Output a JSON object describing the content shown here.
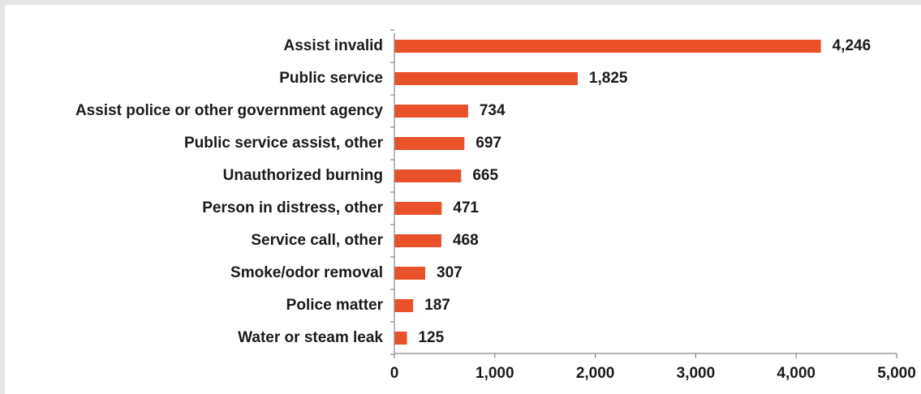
{
  "chart_data": {
    "type": "bar",
    "orientation": "horizontal",
    "title": "",
    "xlabel": "",
    "ylabel": "",
    "categories": [
      "Assist invalid",
      "Public service",
      "Assist police or other government agency",
      "Public service assist, other",
      "Unauthorized burning",
      "Person in distress, other",
      "Service call, other",
      "Smoke/odor removal",
      "Police matter",
      "Water or steam leak"
    ],
    "values": [
      4246,
      1825,
      734,
      697,
      665,
      471,
      468,
      307,
      187,
      125
    ],
    "value_labels": [
      "4,246",
      "1,825",
      "734",
      "697",
      "665",
      "471",
      "468",
      "307",
      "187",
      "125"
    ],
    "xlim": [
      0,
      5000
    ],
    "x_ticks": [
      0,
      1000,
      2000,
      3000,
      4000,
      5000
    ],
    "x_tick_labels": [
      "0",
      "1,000",
      "2,000",
      "3,000",
      "4,000",
      "5,000"
    ],
    "grid": false,
    "legend": "none",
    "bar_color": "#e8512a",
    "axis_color": "#888888"
  }
}
